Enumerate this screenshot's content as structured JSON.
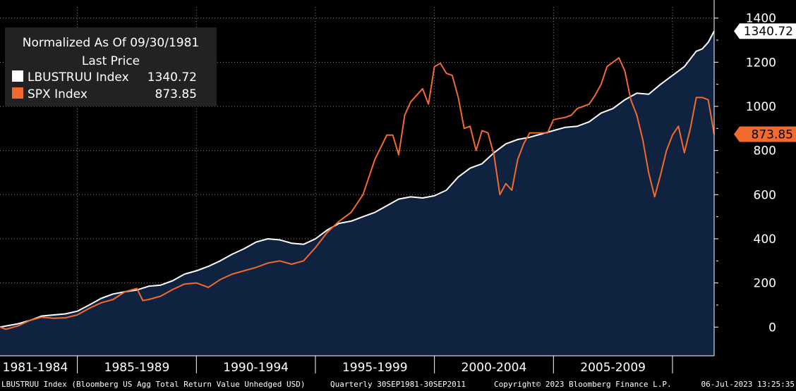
{
  "legend": {
    "title_line1": "Normalized As Of 09/30/1981",
    "title_line2": "Last Price",
    "items": [
      {
        "name": "LBUSTRUU Index",
        "value": "1340.72",
        "color": "#ffffff"
      },
      {
        "name": "SPX Index",
        "value": "873.85",
        "color": "#f26a2e"
      }
    ]
  },
  "footer": {
    "description": "LBUSTRUU Index (Bloomberg US Agg Total Return Value Unhedged USD)",
    "frequency": "Quarterly 30SEP1981-30SEP2011",
    "copyright": "Copyright© 2023 Bloomberg Finance L.P.",
    "timestamp": "06-Jul-2023 13:25:35"
  },
  "colors": {
    "background": "#000000",
    "area_fill": "#0f2240",
    "series1": "#ffffff",
    "series2": "#f26a2e",
    "grid": "#8a8a8a",
    "text": "#ffffff"
  },
  "chart_data": {
    "type": "line",
    "x_tick_labels": [
      "1981-1984",
      "1985-1989",
      "1990-1994",
      "1995-1999",
      "2000-2004",
      "2005-2009"
    ],
    "y_ticks": [
      0,
      200,
      400,
      600,
      800,
      1000,
      1200,
      1400
    ],
    "ylim": [
      -130,
      1450
    ],
    "xlim": [
      1981.75,
      2011.75
    ],
    "grid": true,
    "y_axis_side": "right",
    "legend_position": "top-left",
    "series": [
      {
        "name": "LBUSTRUU Index",
        "style": "line-with-area",
        "last_value_label": "1340.72",
        "points": [
          [
            1981.75,
            0
          ],
          [
            1982.5,
            15
          ],
          [
            1983.0,
            30
          ],
          [
            1983.5,
            50
          ],
          [
            1984.0,
            55
          ],
          [
            1984.5,
            60
          ],
          [
            1985.0,
            72
          ],
          [
            1985.5,
            100
          ],
          [
            1986.0,
            130
          ],
          [
            1986.5,
            150
          ],
          [
            1987.0,
            160
          ],
          [
            1987.5,
            168
          ],
          [
            1988.0,
            185
          ],
          [
            1988.5,
            190
          ],
          [
            1989.0,
            210
          ],
          [
            1989.5,
            240
          ],
          [
            1990.0,
            255
          ],
          [
            1990.5,
            275
          ],
          [
            1991.0,
            300
          ],
          [
            1991.5,
            330
          ],
          [
            1992.0,
            355
          ],
          [
            1992.5,
            385
          ],
          [
            1993.0,
            400
          ],
          [
            1993.5,
            395
          ],
          [
            1994.0,
            380
          ],
          [
            1994.5,
            375
          ],
          [
            1995.0,
            400
          ],
          [
            1995.5,
            440
          ],
          [
            1996.0,
            470
          ],
          [
            1996.5,
            480
          ],
          [
            1997.0,
            500
          ],
          [
            1997.5,
            520
          ],
          [
            1998.0,
            550
          ],
          [
            1998.5,
            580
          ],
          [
            1999.0,
            590
          ],
          [
            1999.5,
            585
          ],
          [
            2000.0,
            595
          ],
          [
            2000.5,
            620
          ],
          [
            2001.0,
            680
          ],
          [
            2001.5,
            720
          ],
          [
            2002.0,
            740
          ],
          [
            2002.5,
            790
          ],
          [
            2003.0,
            830
          ],
          [
            2003.5,
            850
          ],
          [
            2004.0,
            860
          ],
          [
            2004.5,
            875
          ],
          [
            2005.0,
            890
          ],
          [
            2005.5,
            905
          ],
          [
            2006.0,
            910
          ],
          [
            2006.5,
            930
          ],
          [
            2007.0,
            970
          ],
          [
            2007.5,
            990
          ],
          [
            2008.0,
            1030
          ],
          [
            2008.5,
            1060
          ],
          [
            2009.0,
            1055
          ],
          [
            2009.5,
            1100
          ],
          [
            2010.0,
            1140
          ],
          [
            2010.5,
            1180
          ],
          [
            2011.0,
            1250
          ],
          [
            2011.25,
            1260
          ],
          [
            2011.5,
            1290
          ],
          [
            2011.75,
            1340.72
          ]
        ]
      },
      {
        "name": "SPX Index",
        "style": "line",
        "last_value_label": "873.85",
        "points": [
          [
            1981.75,
            0
          ],
          [
            1982.0,
            -10
          ],
          [
            1982.5,
            5
          ],
          [
            1983.0,
            30
          ],
          [
            1983.5,
            45
          ],
          [
            1984.0,
            40
          ],
          [
            1984.5,
            42
          ],
          [
            1985.0,
            55
          ],
          [
            1985.5,
            85
          ],
          [
            1986.0,
            110
          ],
          [
            1986.5,
            125
          ],
          [
            1987.0,
            160
          ],
          [
            1987.5,
            175
          ],
          [
            1987.75,
            120
          ],
          [
            1988.0,
            125
          ],
          [
            1988.5,
            140
          ],
          [
            1989.0,
            170
          ],
          [
            1989.5,
            195
          ],
          [
            1990.0,
            200
          ],
          [
            1990.5,
            180
          ],
          [
            1991.0,
            215
          ],
          [
            1991.5,
            240
          ],
          [
            1992.0,
            255
          ],
          [
            1992.5,
            270
          ],
          [
            1993.0,
            290
          ],
          [
            1993.5,
            300
          ],
          [
            1994.0,
            285
          ],
          [
            1994.5,
            300
          ],
          [
            1995.0,
            360
          ],
          [
            1995.5,
            430
          ],
          [
            1996.0,
            480
          ],
          [
            1996.5,
            520
          ],
          [
            1997.0,
            600
          ],
          [
            1997.5,
            760
          ],
          [
            1998.0,
            870
          ],
          [
            1998.25,
            870
          ],
          [
            1998.5,
            780
          ],
          [
            1998.75,
            960
          ],
          [
            1999.0,
            1020
          ],
          [
            1999.5,
            1080
          ],
          [
            1999.75,
            1010
          ],
          [
            2000.0,
            1180
          ],
          [
            2000.25,
            1195
          ],
          [
            2000.5,
            1150
          ],
          [
            2000.75,
            1140
          ],
          [
            2001.0,
            1040
          ],
          [
            2001.25,
            900
          ],
          [
            2001.5,
            910
          ],
          [
            2001.75,
            800
          ],
          [
            2002.0,
            890
          ],
          [
            2002.25,
            880
          ],
          [
            2002.5,
            780
          ],
          [
            2002.75,
            600
          ],
          [
            2003.0,
            650
          ],
          [
            2003.25,
            620
          ],
          [
            2003.5,
            760
          ],
          [
            2003.75,
            830
          ],
          [
            2004.0,
            880
          ],
          [
            2004.5,
            880
          ],
          [
            2004.75,
            880
          ],
          [
            2005.0,
            940
          ],
          [
            2005.5,
            950
          ],
          [
            2005.75,
            960
          ],
          [
            2006.0,
            990
          ],
          [
            2006.25,
            1000
          ],
          [
            2006.5,
            1010
          ],
          [
            2006.75,
            1050
          ],
          [
            2007.0,
            1100
          ],
          [
            2007.25,
            1180
          ],
          [
            2007.5,
            1200
          ],
          [
            2007.75,
            1220
          ],
          [
            2008.0,
            1160
          ],
          [
            2008.25,
            1030
          ],
          [
            2008.5,
            960
          ],
          [
            2008.75,
            850
          ],
          [
            2009.0,
            700
          ],
          [
            2009.25,
            590
          ],
          [
            2009.5,
            690
          ],
          [
            2009.75,
            800
          ],
          [
            2010.0,
            870
          ],
          [
            2010.25,
            910
          ],
          [
            2010.5,
            790
          ],
          [
            2010.75,
            900
          ],
          [
            2011.0,
            1040
          ],
          [
            2011.25,
            1040
          ],
          [
            2011.5,
            1030
          ],
          [
            2011.75,
            873.85
          ]
        ]
      }
    ]
  }
}
